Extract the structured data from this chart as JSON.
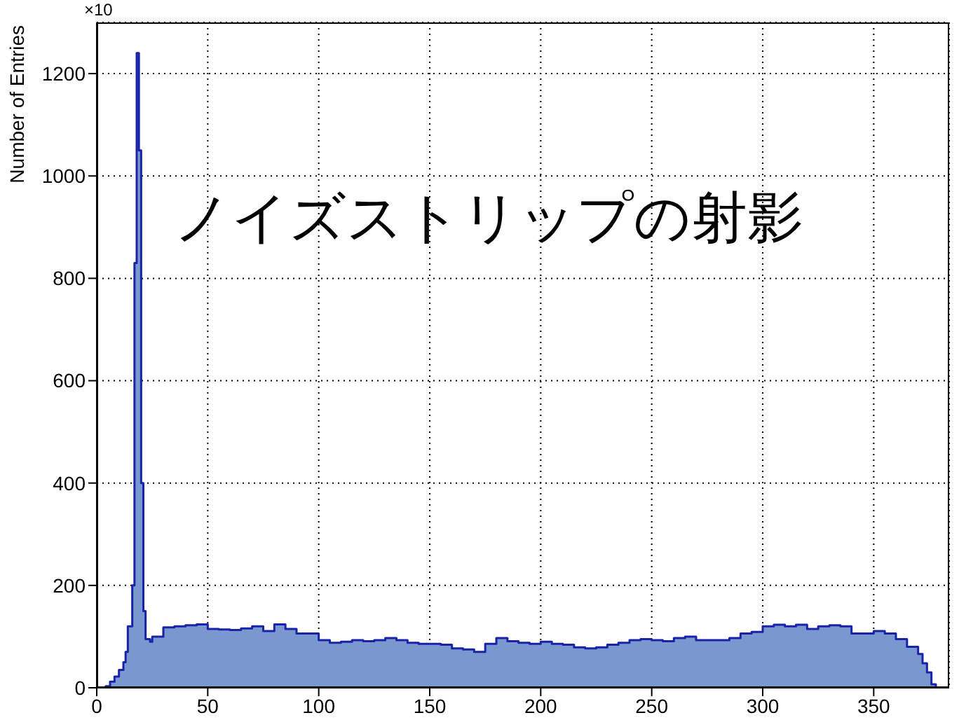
{
  "chart_data": {
    "type": "histogram",
    "title": "ノイズストリップの射影",
    "ylabel": "Number of Entries",
    "annotations": [
      "×10"
    ],
    "bins": [
      0,
      4,
      6,
      8,
      10,
      12,
      13,
      14,
      15,
      16,
      17,
      18,
      19,
      20,
      21,
      22,
      24,
      25,
      30,
      35,
      40,
      45,
      50,
      55,
      60,
      65,
      70,
      75,
      80,
      85,
      90,
      95,
      100,
      105,
      110,
      115,
      120,
      125,
      130,
      135,
      140,
      145,
      150,
      155,
      160,
      165,
      170,
      175,
      180,
      185,
      190,
      195,
      200,
      205,
      210,
      215,
      220,
      225,
      230,
      235,
      240,
      245,
      250,
      255,
      260,
      265,
      270,
      275,
      280,
      285,
      290,
      295,
      300,
      305,
      310,
      315,
      320,
      325,
      330,
      335,
      340,
      345,
      350,
      355,
      360,
      365,
      370,
      372,
      374,
      376,
      378
    ],
    "values": [
      0,
      3,
      12,
      22,
      35,
      50,
      70,
      120,
      120,
      200,
      830,
      1240,
      1050,
      400,
      150,
      95,
      90,
      100,
      118,
      120,
      122,
      124,
      115,
      114,
      113,
      116,
      120,
      111,
      124,
      115,
      106,
      106,
      93,
      88,
      90,
      93,
      91,
      93,
      97,
      93,
      88,
      86,
      86,
      84,
      77,
      75,
      70,
      86,
      97,
      91,
      88,
      86,
      90,
      86,
      84,
      79,
      77,
      79,
      84,
      88,
      93,
      95,
      93,
      91,
      97,
      100,
      93,
      93,
      93,
      97,
      106,
      109,
      120,
      123,
      120,
      123,
      115,
      120,
      122,
      120,
      106,
      106,
      111,
      106,
      95,
      80,
      66,
      48,
      30,
      7
    ],
    "color": "#7a98d0",
    "xlim": [
      0,
      384
    ],
    "ylim": [
      0,
      1300
    ],
    "xticks": [
      0,
      50,
      100,
      150,
      200,
      250,
      300,
      350
    ],
    "yticks": [
      0,
      200,
      400,
      600,
      800,
      1000,
      1200
    ],
    "grid": true
  }
}
